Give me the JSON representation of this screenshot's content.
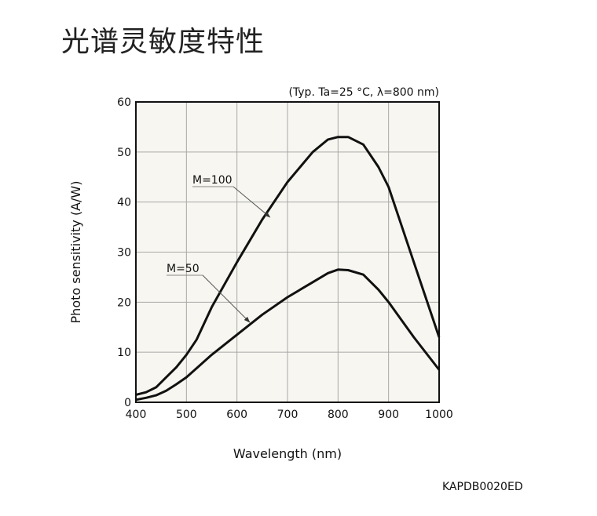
{
  "page_title": "光谱灵敏度特性",
  "figure_code": "KAPDB0020ED",
  "chart_data": {
    "type": "line",
    "title": "光谱灵敏度特性",
    "annotation": "(Typ. Ta=25 °C, λ=800 nm)",
    "xlabel": "Wavelength (nm)",
    "ylabel": "Photo sensitivity (A/W)",
    "xlim": [
      400,
      1000
    ],
    "ylim": [
      0,
      60
    ],
    "xticks": [
      400,
      500,
      600,
      700,
      800,
      900,
      1000
    ],
    "yticks": [
      0,
      10,
      20,
      30,
      40,
      50,
      60
    ],
    "grid": true,
    "legend": "inline labels",
    "series": [
      {
        "name": "M=100",
        "label_anchor": [
          665,
          37
        ],
        "x": [
          400,
          420,
          440,
          460,
          480,
          500,
          520,
          550,
          600,
          650,
          700,
          750,
          780,
          800,
          820,
          850,
          880,
          900,
          950,
          1000
        ],
        "y": [
          1.5,
          2.0,
          3.0,
          5.0,
          7.0,
          9.5,
          12.5,
          19,
          28,
          36.5,
          44,
          50,
          52.5,
          53,
          53,
          51.5,
          47,
          43,
          28,
          13
        ]
      },
      {
        "name": "M=50",
        "label_anchor": [
          625,
          16
        ],
        "x": [
          400,
          420,
          440,
          460,
          480,
          500,
          550,
          600,
          650,
          700,
          750,
          780,
          800,
          820,
          850,
          880,
          900,
          950,
          1000
        ],
        "y": [
          0.5,
          0.9,
          1.4,
          2.3,
          3.6,
          5.0,
          9.5,
          13.5,
          17.5,
          21,
          24,
          25.8,
          26.5,
          26.4,
          25.5,
          22.5,
          20,
          13,
          6.5
        ]
      }
    ],
    "colors": {
      "plot_bg": "#f7f6f0",
      "grid": "#a8a8a8",
      "line": "#111111"
    }
  }
}
